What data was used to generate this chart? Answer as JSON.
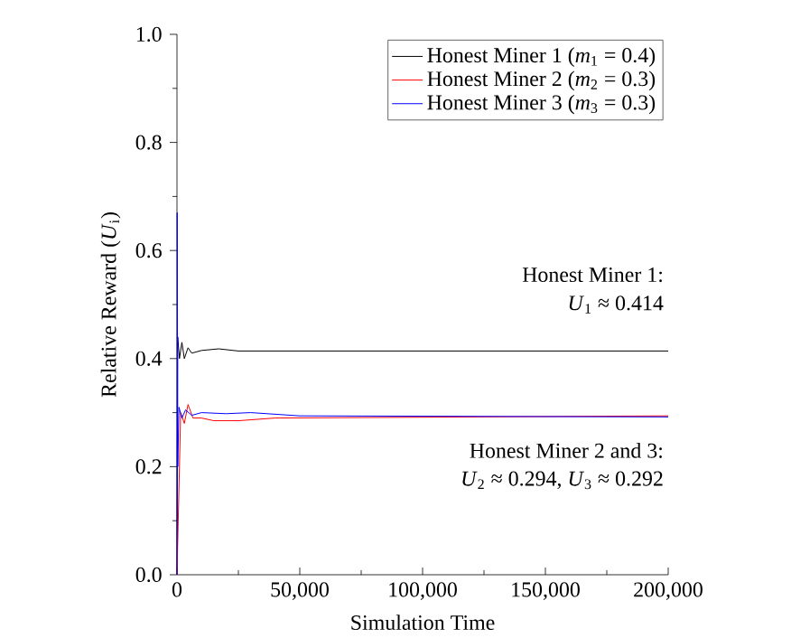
{
  "chart_data": {
    "type": "line",
    "xlabel": "Simulation Time",
    "ylabel": "Relative Reward (*U*$_{i}$)",
    "xlim": [
      0,
      200000
    ],
    "ylim": [
      0,
      1.0
    ],
    "xticks": [
      {
        "value": 0,
        "label": "0"
      },
      {
        "value": 50000,
        "label": "50,000"
      },
      {
        "value": 100000,
        "label": "100,000"
      },
      {
        "value": 150000,
        "label": "150,000"
      },
      {
        "value": 200000,
        "label": "200,000"
      }
    ],
    "yticks": [
      {
        "value": 0,
        "label": "0.0"
      },
      {
        "value": 0.2,
        "label": "0.2"
      },
      {
        "value": 0.4,
        "label": "0.4"
      },
      {
        "value": 0.6,
        "label": "0.6"
      },
      {
        "value": 0.8,
        "label": "0.8"
      },
      {
        "value": 1.0,
        "label": "1.0"
      }
    ],
    "legend": "top right",
    "grid": false,
    "line_style": "solid",
    "marker": "none",
    "series": [
      {
        "name": "Honest Miner 1 (*m*$_{1}$ = 0.4)",
        "color": "#000000",
        "x": [
          0,
          300,
          1000,
          2000,
          3000,
          4500,
          6000,
          10000,
          17000,
          25000,
          200000
        ],
        "values": [
          0,
          0.44,
          0.4,
          0.43,
          0.4,
          0.42,
          0.41,
          0.415,
          0.418,
          0.414,
          0.414
        ]
      },
      {
        "name": "Honest Miner 2 (*m*$_{2}$ = 0.3)",
        "color": "#ff0000",
        "x": [
          0,
          1500,
          3000,
          4500,
          6500,
          10000,
          15000,
          25000,
          40000,
          200000
        ],
        "values": [
          0,
          0.3,
          0.28,
          0.315,
          0.29,
          0.29,
          0.285,
          0.285,
          0.29,
          0.294
        ]
      },
      {
        "name": "Honest Miner 3 (*m*$_{3}$ = 0.3)",
        "color": "#0000ff",
        "x": [
          0,
          100,
          300,
          800,
          2000,
          3500,
          6000,
          10000,
          20000,
          30000,
          50000,
          200000
        ],
        "values": [
          0,
          0.67,
          0.2,
          0.31,
          0.29,
          0.305,
          0.295,
          0.3,
          0.298,
          0.3,
          0.294,
          0.292
        ]
      }
    ],
    "annotations": [
      "Honest Miner 1:",
      "*U*$_{1}$ ≈ 0.414",
      "Honest Miner 2 and 3:",
      "*U*$_{2}$ ≈ 0.294, *U*$_{3}$ ≈ 0.292"
    ]
  }
}
